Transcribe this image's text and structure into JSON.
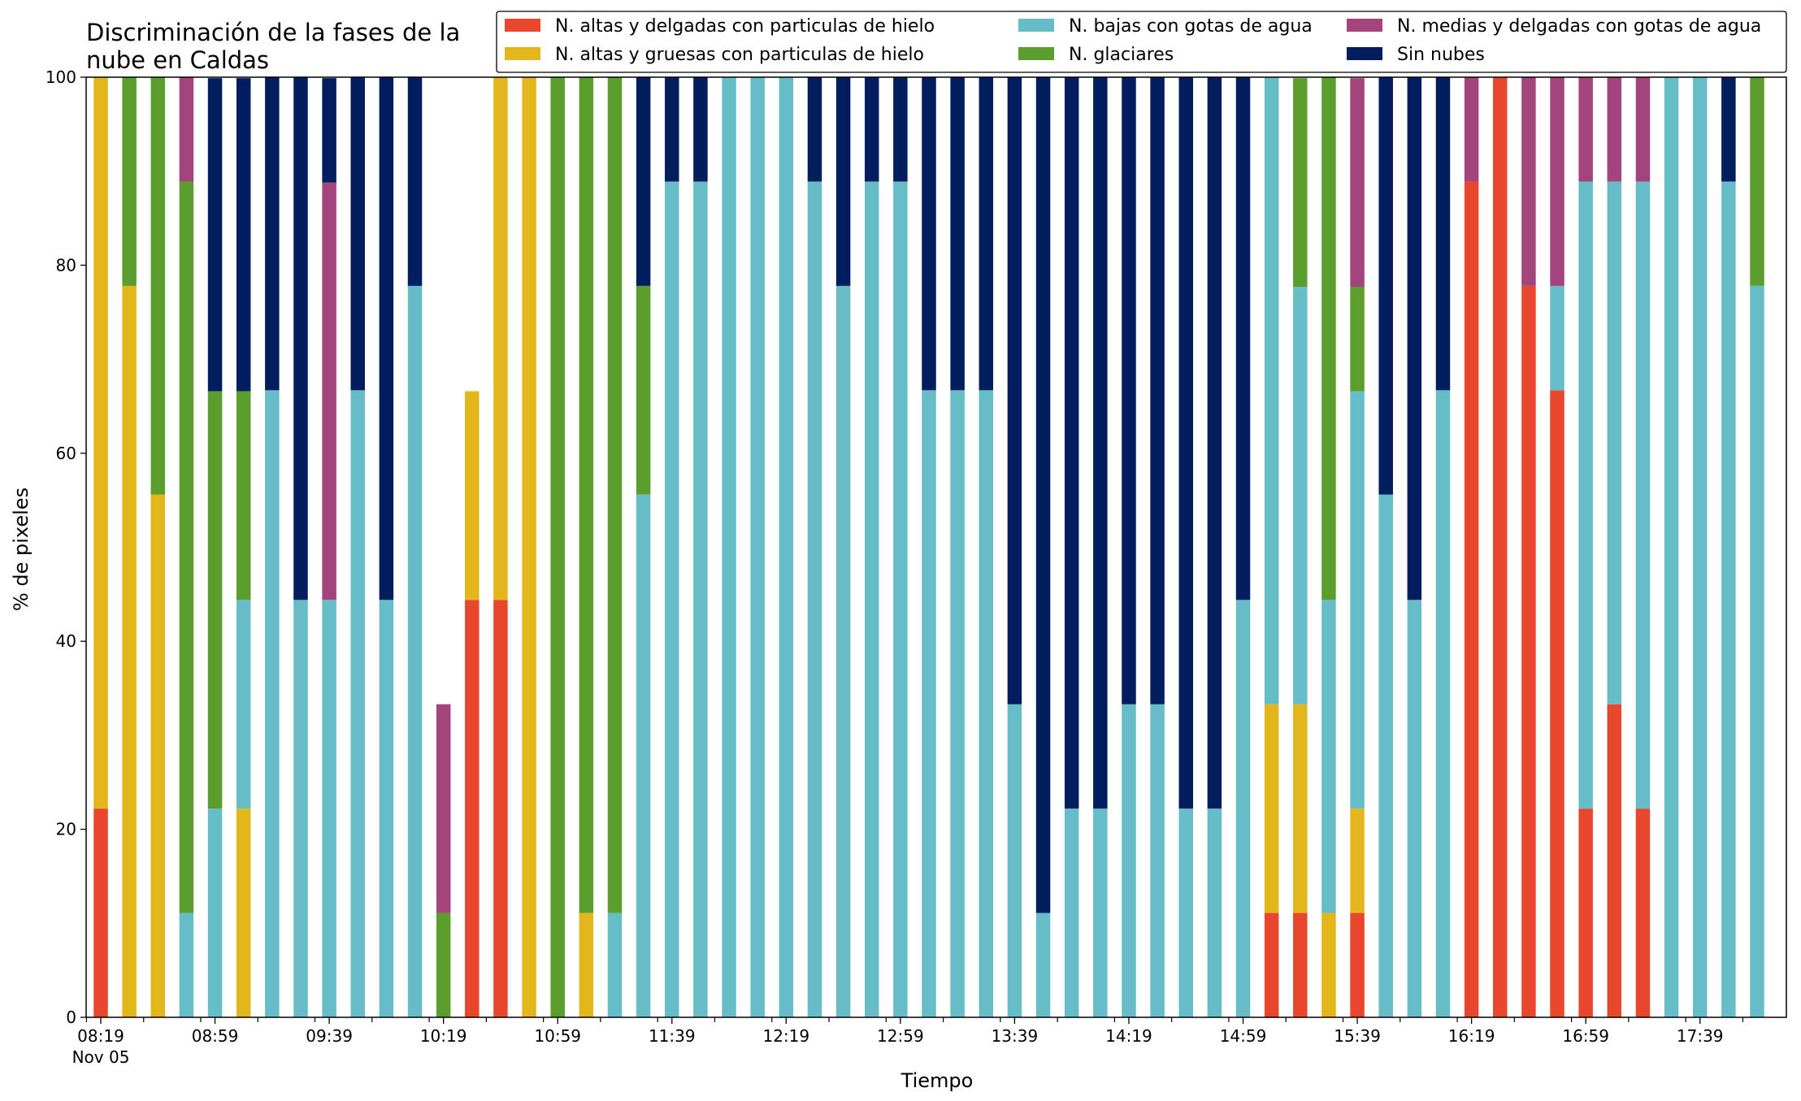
{
  "chart_data": {
    "type": "bar",
    "stacked": true,
    "title_line1": "Discriminación de la fases de la",
    "title_line2": "nube en Caldas",
    "xlabel": "Tiempo",
    "ylabel": "% de pixeles",
    "ylim": [
      0,
      100
    ],
    "yticks": [
      0,
      20,
      40,
      60,
      80,
      100
    ],
    "grid": false,
    "legend_position": "top-right",
    "x_start": "08:19",
    "x_interval_minutes": 10,
    "x_tick_labels": [
      "08:19",
      "08:59",
      "09:39",
      "10:19",
      "10:59",
      "11:39",
      "12:19",
      "12:59",
      "13:39",
      "14:19",
      "14:59",
      "15:39",
      "16:19",
      "16:59",
      "17:39"
    ],
    "x_date_label": "Nov 05",
    "series": [
      {
        "name": "N. altas y delgadas con particulas de hielo",
        "color": "#e8472d",
        "values": [
          22.2,
          0,
          0,
          0,
          0,
          0,
          0,
          0,
          0,
          0,
          0,
          0,
          0,
          44.4,
          44.4,
          0,
          0,
          0,
          0,
          0,
          0,
          0,
          0,
          0,
          0,
          0,
          0,
          0,
          0,
          0,
          0,
          0,
          0,
          0,
          0,
          0,
          0,
          0,
          0,
          0,
          0,
          11.1,
          11.1,
          0,
          11.1,
          0,
          0,
          0,
          88.9,
          100,
          77.8,
          66.7,
          22.2,
          33.3,
          22.2,
          0,
          0,
          0,
          0
        ]
      },
      {
        "name": "N. altas y gruesas con particulas de hielo",
        "color": "#e3b61c",
        "values": [
          77.8,
          77.8,
          55.6,
          0,
          0,
          22.2,
          0,
          0,
          0,
          0,
          0,
          0,
          0,
          22.2,
          55.6,
          100,
          0,
          11.1,
          0,
          0,
          0,
          0,
          0,
          0,
          0,
          0,
          0,
          0,
          0,
          0,
          0,
          0,
          0,
          0,
          0,
          0,
          0,
          0,
          0,
          0,
          0,
          22.2,
          22.2,
          11.1,
          11.1,
          0,
          0,
          0,
          0,
          0,
          0,
          0,
          0,
          0,
          0,
          0,
          0,
          0,
          0
        ]
      },
      {
        "name": "N. bajas con gotas de agua",
        "color": "#66bdc8",
        "values": [
          0,
          0,
          0,
          11.1,
          22.2,
          22.2,
          66.7,
          44.4,
          44.4,
          66.7,
          44.4,
          77.8,
          0,
          0,
          0,
          0,
          0,
          0,
          11.1,
          55.6,
          88.9,
          88.9,
          100,
          100,
          100,
          88.9,
          77.8,
          88.9,
          88.9,
          66.7,
          66.7,
          66.7,
          33.3,
          11.1,
          22.2,
          22.2,
          33.3,
          33.3,
          22.2,
          22.2,
          44.4,
          66.7,
          44.4,
          33.3,
          44.4,
          55.6,
          44.4,
          66.7,
          0,
          0,
          0,
          11.1,
          66.7,
          55.6,
          66.7,
          100,
          100,
          88.9,
          77.8
        ]
      },
      {
        "name": "N. glaciares",
        "color": "#5b9e2d",
        "values": [
          0,
          22.2,
          44.4,
          77.8,
          44.4,
          22.2,
          0,
          0,
          0,
          0,
          0,
          0,
          11.1,
          0,
          0,
          0,
          100,
          88.9,
          88.9,
          22.2,
          0,
          0,
          0,
          0,
          0,
          0,
          0,
          0,
          0,
          0,
          0,
          0,
          0,
          0,
          0,
          0,
          0,
          0,
          0,
          0,
          0,
          0,
          22.2,
          55.6,
          11.1,
          0,
          0,
          0,
          0,
          0,
          0,
          0,
          0,
          0,
          0,
          0,
          0,
          0,
          22.2
        ]
      },
      {
        "name": "N. medias y delgadas con gotas de agua",
        "color": "#a3457c",
        "values": [
          0,
          0,
          0,
          11.1,
          0,
          0,
          0,
          0,
          44.4,
          0,
          0,
          0,
          22.2,
          0,
          0,
          0,
          0,
          0,
          0,
          0,
          0,
          0,
          0,
          0,
          0,
          0,
          0,
          0,
          0,
          0,
          0,
          0,
          0,
          0,
          0,
          0,
          0,
          0,
          0,
          0,
          0,
          0,
          0,
          0,
          22.2,
          0,
          0,
          0,
          11.1,
          0,
          22.2,
          22.2,
          11.1,
          11.1,
          11.1,
          0,
          0,
          0,
          0
        ]
      },
      {
        "name": "Sin nubes",
        "color": "#021e5e",
        "values": [
          0,
          0,
          0,
          0,
          33.3,
          33.3,
          33.3,
          55.6,
          11.1,
          33.3,
          55.6,
          22.2,
          0,
          0,
          0,
          0,
          0,
          0,
          0,
          22.2,
          11.1,
          11.1,
          0,
          0,
          0,
          11.1,
          22.2,
          11.1,
          11.1,
          33.3,
          33.3,
          33.3,
          66.7,
          88.9,
          77.8,
          77.8,
          66.7,
          66.7,
          77.8,
          77.8,
          55.6,
          0,
          0,
          0,
          0,
          44.4,
          55.6,
          33.3,
          0,
          0,
          0,
          0,
          0,
          0,
          0,
          0,
          0,
          11.1,
          0
        ]
      }
    ]
  }
}
